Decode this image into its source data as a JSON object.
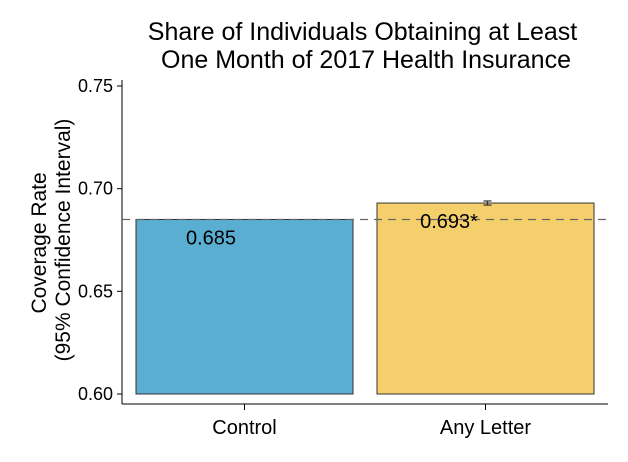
{
  "chart_data": {
    "type": "bar",
    "title_lines": [
      "Share of Individuals Obtaining at Least",
      "One Month of 2017 Health Insurance"
    ],
    "ylabel_lines": [
      "Coverage Rate",
      "(95% Confidence Interval)"
    ],
    "xlabel": "",
    "categories": [
      "Control",
      "Any Letter"
    ],
    "values": [
      0.685,
      0.693
    ],
    "bar_labels": [
      "0.685",
      "0.693*"
    ],
    "bar_colors": [
      "#5aaed2",
      "#f5cf6b"
    ],
    "error_bars": [
      null,
      [
        0.692,
        0.694
      ]
    ],
    "reference_line": 0.685,
    "ylim": [
      0.6,
      0.755
    ],
    "yticks": [
      0.6,
      0.65,
      0.7,
      0.75
    ],
    "ytick_labels": [
      "0.60",
      "0.65",
      "0.70",
      "0.75"
    ],
    "grid": false,
    "legend": "none"
  }
}
